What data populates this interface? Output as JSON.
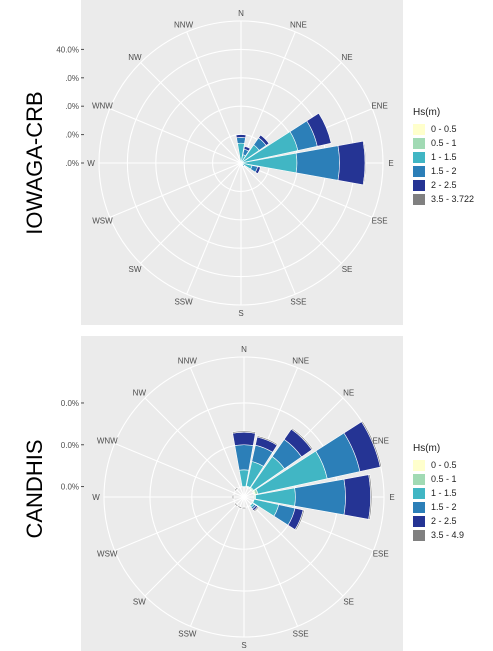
{
  "chart_data": [
    {
      "type": "windrose",
      "side_label": "IOWAGA-CRB",
      "legend_title": "Hs(m)",
      "bins": [
        "0 - 0.5",
        "0.5 - 1",
        "1 - 1.5",
        "1.5 - 2",
        "2 - 2.5",
        "3.5 - 3.722"
      ],
      "colors": [
        "#ffffcc",
        "#a1dab4",
        "#41b6c4",
        "#2c7fb8",
        "#253494",
        "#808080"
      ],
      "directions": [
        "N",
        "NNE",
        "NE",
        "ENE",
        "E",
        "ESE",
        "SE",
        "SSE",
        "S",
        "SSW",
        "SW",
        "WSW",
        "W",
        "WNW",
        "NW",
        "NNW"
      ],
      "radial_ticks": [
        {
          "value": 40,
          "label": "40.0%"
        },
        {
          "value": 30,
          "label": ".0%"
        },
        {
          "value": 20,
          "label": ".0%"
        },
        {
          "value": 10,
          "label": ".0%"
        },
        {
          "value": 0,
          "label": ".0%"
        }
      ],
      "r_offset": 0,
      "r_max": 50,
      "sectors": [
        {
          "dir": "N",
          "values": [
            0,
            0,
            7,
            2,
            1,
            0
          ]
        },
        {
          "dir": "NNE",
          "values": [
            0,
            0,
            3,
            2,
            1,
            0
          ]
        },
        {
          "dir": "NE",
          "values": [
            0,
            0.3,
            7.5,
            3,
            1.2,
            0
          ]
        },
        {
          "dir": "ENE",
          "values": [
            0,
            0.5,
            20,
            7,
            5,
            0
          ]
        },
        {
          "dir": "E",
          "values": [
            0,
            0.7,
            19,
            15,
            9,
            0.3
          ]
        },
        {
          "dir": "ESE",
          "values": [
            0,
            0,
            4,
            2,
            1,
            0
          ]
        },
        {
          "dir": "SE",
          "values": [
            0,
            0,
            1,
            0.5,
            0,
            0
          ]
        },
        {
          "dir": "SSE",
          "values": [
            0,
            0,
            0.5,
            0,
            0,
            0
          ]
        },
        {
          "dir": "NNW",
          "values": [
            0,
            0,
            0.5,
            0.3,
            0,
            0
          ]
        }
      ]
    },
    {
      "type": "windrose",
      "side_label": "CANDHIS",
      "legend_title": "Hs(m)",
      "bins": [
        "0 - 0.5",
        "0.5 - 1",
        "1 - 1.5",
        "1.5 - 2",
        "2 - 2.5",
        "3.5 - 4.9"
      ],
      "colors": [
        "#ffffcc",
        "#a1dab4",
        "#41b6c4",
        "#2c7fb8",
        "#253494",
        "#808080"
      ],
      "directions": [
        "N",
        "NNE",
        "NE",
        "ENE",
        "E",
        "ESE",
        "SE",
        "SSE",
        "S",
        "SSW",
        "SW",
        "WSW",
        "W",
        "WNW",
        "NW",
        "NNW"
      ],
      "radial_ticks": [
        {
          "value": 20,
          "label": "0.0%"
        },
        {
          "value": 10,
          "label": "0.0%"
        },
        {
          "value": 0,
          "label": "0.0%"
        }
      ],
      "r_offset": 2.5,
      "r_max": 33.5,
      "sectors": [
        {
          "dir": "N",
          "values": [
            0,
            0,
            4,
            6,
            3,
            0.3
          ]
        },
        {
          "dir": "NNE",
          "values": [
            0,
            0.2,
            6,
            4,
            2,
            0.3
          ]
        },
        {
          "dir": "NE",
          "values": [
            0,
            0.3,
            9,
            5,
            3,
            0.3
          ]
        },
        {
          "dir": "ENE",
          "values": [
            0.3,
            0.6,
            17,
            8,
            5,
            0.3
          ]
        },
        {
          "dir": "E",
          "values": [
            0,
            0.3,
            9.5,
            12,
            6,
            0.3
          ]
        },
        {
          "dir": "ESE",
          "values": [
            0,
            0,
            6,
            4,
            2,
            0.3
          ]
        },
        {
          "dir": "SE",
          "values": [
            0,
            0,
            0.5,
            0.5,
            0.5,
            0.3
          ]
        },
        {
          "dir": "S",
          "values": [
            0,
            0,
            0,
            0,
            0,
            0.3
          ]
        },
        {
          "dir": "SSW",
          "values": [
            0,
            0,
            0,
            0,
            0,
            0.3
          ]
        },
        {
          "dir": "SW",
          "values": [
            0,
            0,
            0,
            0,
            0,
            0.3
          ]
        },
        {
          "dir": "W",
          "values": [
            0,
            0,
            0,
            0,
            0,
            0.3
          ]
        },
        {
          "dir": "NW",
          "values": [
            0,
            0,
            0,
            0,
            0,
            0.3
          ]
        }
      ]
    }
  ]
}
